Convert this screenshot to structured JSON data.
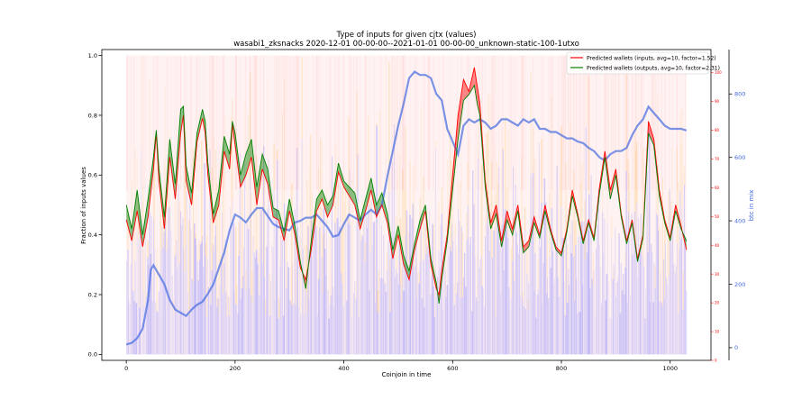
{
  "chart_data": {
    "type": "line",
    "title": "Type of inputs for given cjtx (values)",
    "subtitle": "wasabi1_zksnacks 2020-12-01 00-00-00--2021-01-01 00-00-00_unknown-static-100-1utxo",
    "xlabel": "Coinjoin in time",
    "ylabel": "Fraction of inputs values",
    "y2label": "btc in mix",
    "xlim": [
      -45,
      1075
    ],
    "ylim": [
      -0.02,
      1.02
    ],
    "y2lim": [
      -40,
      940
    ],
    "y3lim": [
      0,
      108
    ],
    "xticks": [
      0,
      200,
      400,
      600,
      800,
      1000
    ],
    "yticks": [
      "0.0",
      "0.2",
      "0.4",
      "0.6",
      "0.8",
      "1.0"
    ],
    "y2ticks": [
      0,
      200,
      400,
      600,
      800
    ],
    "y3ticks": [
      0,
      10,
      20,
      30,
      40,
      50,
      60,
      70,
      80,
      90,
      100
    ],
    "legend_position": "top-right",
    "grid": false,
    "colors": {
      "inputs": "#ff0000",
      "outputs": "#008000",
      "btc_mix": "#4169e1",
      "bg_blue": "#6464ff",
      "bg_orange": "#ffa500",
      "bg_red": "#ff8080"
    },
    "series": [
      {
        "name": "Predicted wallets (inputs, avg=10, factor=1.52)",
        "color": "#ff0000",
        "x": [
          0,
          10,
          20,
          30,
          40,
          50,
          55,
          60,
          70,
          80,
          90,
          100,
          105,
          110,
          120,
          130,
          140,
          145,
          150,
          160,
          170,
          180,
          190,
          195,
          200,
          210,
          220,
          230,
          240,
          250,
          260,
          270,
          280,
          290,
          300,
          310,
          320,
          330,
          340,
          350,
          360,
          370,
          380,
          390,
          400,
          410,
          420,
          430,
          440,
          450,
          460,
          470,
          480,
          490,
          500,
          510,
          520,
          530,
          540,
          550,
          560,
          570,
          575,
          580,
          590,
          600,
          610,
          620,
          630,
          640,
          645,
          650,
          660,
          670,
          680,
          690,
          700,
          710,
          720,
          730,
          740,
          750,
          760,
          770,
          780,
          790,
          800,
          810,
          820,
          830,
          840,
          850,
          860,
          870,
          880,
          890,
          900,
          910,
          920,
          930,
          940,
          950,
          960,
          970,
          980,
          990,
          1000,
          1010,
          1020,
          1030
        ],
        "values": [
          0.45,
          0.38,
          0.48,
          0.36,
          0.46,
          0.62,
          0.74,
          0.58,
          0.42,
          0.66,
          0.52,
          0.74,
          0.8,
          0.58,
          0.5,
          0.71,
          0.79,
          0.74,
          0.6,
          0.44,
          0.5,
          0.68,
          0.62,
          0.77,
          0.7,
          0.56,
          0.6,
          0.66,
          0.5,
          0.62,
          0.57,
          0.46,
          0.45,
          0.38,
          0.48,
          0.4,
          0.29,
          0.25,
          0.35,
          0.48,
          0.52,
          0.46,
          0.5,
          0.61,
          0.56,
          0.53,
          0.5,
          0.42,
          0.48,
          0.55,
          0.46,
          0.5,
          0.44,
          0.32,
          0.4,
          0.3,
          0.25,
          0.35,
          0.42,
          0.48,
          0.3,
          0.22,
          0.2,
          0.28,
          0.4,
          0.6,
          0.8,
          0.92,
          0.88,
          0.96,
          0.9,
          0.84,
          0.58,
          0.44,
          0.5,
          0.38,
          0.48,
          0.42,
          0.5,
          0.36,
          0.38,
          0.46,
          0.4,
          0.5,
          0.42,
          0.36,
          0.34,
          0.42,
          0.55,
          0.47,
          0.38,
          0.45,
          0.39,
          0.56,
          0.68,
          0.55,
          0.62,
          0.47,
          0.38,
          0.45,
          0.32,
          0.4,
          0.78,
          0.72,
          0.55,
          0.45,
          0.39,
          0.5,
          0.43,
          0.35
        ]
      },
      {
        "name": "Predicted wallets (outputs, avg=10, factor=2.31)",
        "color": "#008000",
        "x": [
          0,
          10,
          20,
          30,
          40,
          50,
          55,
          60,
          70,
          80,
          90,
          100,
          105,
          110,
          120,
          130,
          140,
          145,
          150,
          160,
          170,
          180,
          190,
          195,
          200,
          210,
          220,
          230,
          240,
          250,
          260,
          270,
          280,
          290,
          300,
          310,
          320,
          330,
          340,
          350,
          360,
          370,
          380,
          390,
          400,
          410,
          420,
          430,
          440,
          450,
          460,
          470,
          480,
          490,
          500,
          510,
          520,
          530,
          540,
          550,
          560,
          570,
          575,
          580,
          590,
          600,
          610,
          620,
          630,
          640,
          645,
          650,
          660,
          670,
          680,
          690,
          700,
          710,
          720,
          730,
          740,
          750,
          760,
          770,
          780,
          790,
          800,
          810,
          820,
          830,
          840,
          850,
          860,
          870,
          880,
          890,
          900,
          910,
          920,
          930,
          940,
          950,
          960,
          970,
          980,
          990,
          1000,
          1010,
          1020,
          1030
        ],
        "values": [
          0.5,
          0.42,
          0.55,
          0.4,
          0.52,
          0.66,
          0.75,
          0.62,
          0.46,
          0.72,
          0.57,
          0.82,
          0.83,
          0.63,
          0.54,
          0.74,
          0.82,
          0.78,
          0.64,
          0.47,
          0.55,
          0.73,
          0.67,
          0.78,
          0.74,
          0.6,
          0.67,
          0.72,
          0.56,
          0.67,
          0.62,
          0.49,
          0.48,
          0.41,
          0.52,
          0.43,
          0.31,
          0.22,
          0.38,
          0.52,
          0.55,
          0.5,
          0.53,
          0.64,
          0.58,
          0.56,
          0.54,
          0.45,
          0.52,
          0.59,
          0.5,
          0.54,
          0.47,
          0.35,
          0.43,
          0.33,
          0.28,
          0.37,
          0.45,
          0.5,
          0.32,
          0.24,
          0.17,
          0.25,
          0.38,
          0.55,
          0.72,
          0.85,
          0.87,
          0.9,
          0.84,
          0.8,
          0.56,
          0.42,
          0.47,
          0.36,
          0.45,
          0.4,
          0.48,
          0.34,
          0.36,
          0.44,
          0.39,
          0.48,
          0.41,
          0.35,
          0.33,
          0.41,
          0.53,
          0.46,
          0.37,
          0.44,
          0.38,
          0.54,
          0.66,
          0.52,
          0.6,
          0.46,
          0.37,
          0.44,
          0.31,
          0.39,
          0.74,
          0.7,
          0.53,
          0.44,
          0.38,
          0.48,
          0.42,
          0.38
        ]
      },
      {
        "name": "btc in mix",
        "axis": "right",
        "color": "#4169e1",
        "x": [
          0,
          10,
          20,
          30,
          40,
          45,
          50,
          60,
          70,
          80,
          90,
          100,
          110,
          120,
          130,
          140,
          150,
          160,
          170,
          180,
          190,
          200,
          210,
          220,
          230,
          240,
          250,
          260,
          270,
          280,
          290,
          300,
          310,
          320,
          330,
          340,
          350,
          360,
          370,
          380,
          390,
          400,
          410,
          420,
          430,
          440,
          450,
          460,
          470,
          480,
          490,
          500,
          510,
          520,
          530,
          540,
          550,
          560,
          570,
          580,
          590,
          600,
          610,
          620,
          630,
          640,
          650,
          660,
          670,
          680,
          690,
          700,
          710,
          720,
          730,
          740,
          750,
          760,
          770,
          780,
          790,
          800,
          810,
          820,
          830,
          840,
          850,
          860,
          870,
          880,
          890,
          900,
          910,
          920,
          930,
          940,
          950,
          960,
          970,
          980,
          990,
          1000,
          1010,
          1020,
          1030
        ],
        "values": [
          10,
          15,
          30,
          60,
          150,
          245,
          260,
          230,
          200,
          150,
          120,
          110,
          100,
          120,
          135,
          145,
          170,
          200,
          250,
          300,
          370,
          420,
          410,
          395,
          420,
          440,
          440,
          415,
          390,
          380,
          375,
          370,
          395,
          400,
          410,
          410,
          420,
          400,
          380,
          350,
          355,
          390,
          420,
          410,
          400,
          420,
          435,
          420,
          450,
          540,
          620,
          700,
          770,
          850,
          870,
          860,
          860,
          850,
          800,
          780,
          690,
          650,
          610,
          700,
          720,
          710,
          720,
          710,
          690,
          700,
          720,
          720,
          710,
          700,
          720,
          710,
          720,
          690,
          690,
          680,
          680,
          670,
          660,
          660,
          650,
          645,
          630,
          620,
          600,
          590,
          610,
          620,
          620,
          630,
          670,
          700,
          720,
          760,
          740,
          720,
          700,
          690,
          690,
          690,
          685
        ]
      }
    ]
  }
}
